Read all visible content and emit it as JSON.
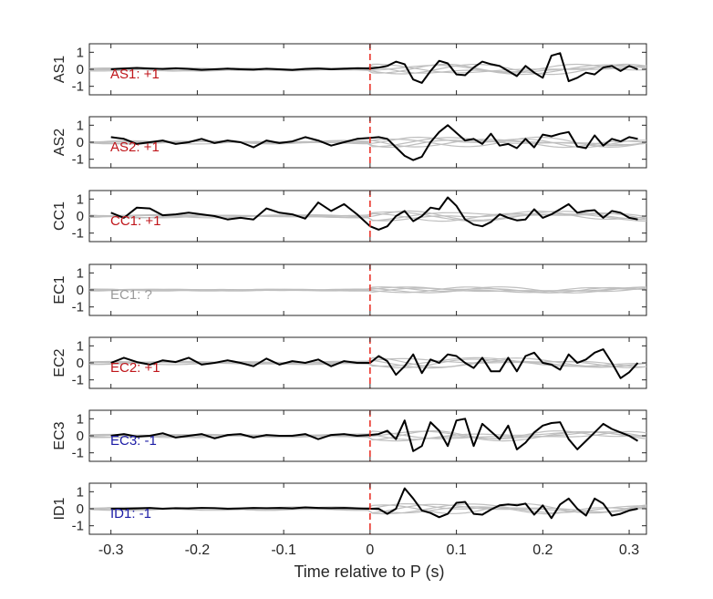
{
  "chart_data": {
    "type": "line",
    "layout": "stacked-panels",
    "xlabel": "Time relative to P (s)",
    "xlim": [
      -0.325,
      0.32
    ],
    "x_ticks": [
      "-0.3",
      "-0.2",
      "-0.1",
      "0",
      "0.1",
      "0.2",
      "0.3"
    ],
    "x_tick_values": [
      -0.3,
      -0.2,
      -0.1,
      0,
      0.1,
      0.2,
      0.3
    ],
    "ylim": [
      -1.5,
      1.5
    ],
    "y_ticks": [
      "1",
      "0",
      "-1"
    ],
    "y_tick_values": [
      1,
      0,
      -1
    ],
    "marker_line_x": 0,
    "colors": {
      "axis": "#262626",
      "trace": "#000000",
      "background_traces": "#bfbfbf",
      "marker_line": "#e8271d",
      "positive_label": "#c0161b",
      "negative_label": "#1d1da6",
      "unknown_label": "#9a9a9a"
    },
    "panels": [
      {
        "ylabel": "AS1",
        "label": "AS1: +1",
        "polarity": "positive",
        "x": [
          -0.3,
          -0.285,
          -0.27,
          -0.255,
          -0.24,
          -0.225,
          -0.21,
          -0.195,
          -0.18,
          -0.165,
          -0.15,
          -0.135,
          -0.12,
          -0.105,
          -0.09,
          -0.075,
          -0.06,
          -0.045,
          -0.03,
          -0.015,
          0,
          0.01,
          0.02,
          0.03,
          0.04,
          0.05,
          0.06,
          0.07,
          0.08,
          0.09,
          0.1,
          0.11,
          0.12,
          0.13,
          0.14,
          0.15,
          0.16,
          0.17,
          0.18,
          0.19,
          0.2,
          0.21,
          0.22,
          0.23,
          0.24,
          0.25,
          0.26,
          0.27,
          0.28,
          0.29,
          0.3,
          0.31
        ],
        "y": [
          0.0,
          0.05,
          0.08,
          0.05,
          0.02,
          0.06,
          0.02,
          -0.03,
          0.0,
          0.04,
          0.0,
          -0.02,
          0.03,
          0.0,
          -0.04,
          0.02,
          0.05,
          0.0,
          0.03,
          0.06,
          0.05,
          0.1,
          0.2,
          0.45,
          0.3,
          -0.6,
          -0.8,
          -0.1,
          0.5,
          0.35,
          -0.3,
          -0.35,
          0.1,
          0.45,
          0.3,
          0.2,
          -0.1,
          -0.4,
          0.2,
          -0.2,
          -0.5,
          0.8,
          0.95,
          -0.7,
          -0.5,
          -0.2,
          -0.3,
          0.1,
          0.2,
          -0.1,
          0.2,
          0.0
        ]
      },
      {
        "ylabel": "AS2",
        "label": "AS2: +1",
        "polarity": "positive",
        "x": [
          -0.3,
          -0.285,
          -0.27,
          -0.255,
          -0.24,
          -0.225,
          -0.21,
          -0.195,
          -0.18,
          -0.165,
          -0.15,
          -0.135,
          -0.12,
          -0.105,
          -0.09,
          -0.075,
          -0.06,
          -0.045,
          -0.03,
          -0.015,
          0,
          0.01,
          0.02,
          0.03,
          0.04,
          0.05,
          0.06,
          0.07,
          0.08,
          0.09,
          0.1,
          0.11,
          0.12,
          0.13,
          0.14,
          0.15,
          0.16,
          0.17,
          0.18,
          0.19,
          0.2,
          0.21,
          0.22,
          0.23,
          0.24,
          0.25,
          0.26,
          0.27,
          0.28,
          0.29,
          0.3,
          0.31
        ],
        "y": [
          0.3,
          0.2,
          -0.1,
          0.0,
          0.1,
          -0.1,
          0.0,
          0.2,
          -0.05,
          0.1,
          0.0,
          -0.3,
          0.1,
          -0.05,
          0.05,
          0.3,
          0.1,
          -0.2,
          0.0,
          0.2,
          0.25,
          0.3,
          0.2,
          -0.3,
          -0.8,
          -1.05,
          -0.85,
          0.0,
          0.6,
          1.0,
          0.55,
          0.1,
          0.2,
          -0.1,
          0.5,
          -0.2,
          -0.1,
          -0.35,
          0.2,
          -0.3,
          0.45,
          0.35,
          0.5,
          0.6,
          -0.25,
          -0.35,
          0.4,
          -0.2,
          0.2,
          0.05,
          0.3,
          0.2
        ]
      },
      {
        "ylabel": "CC1",
        "label": "CC1: +1",
        "polarity": "positive",
        "x": [
          -0.3,
          -0.285,
          -0.27,
          -0.255,
          -0.24,
          -0.225,
          -0.21,
          -0.195,
          -0.18,
          -0.165,
          -0.15,
          -0.135,
          -0.12,
          -0.105,
          -0.09,
          -0.075,
          -0.06,
          -0.045,
          -0.03,
          -0.015,
          0,
          0.01,
          0.02,
          0.03,
          0.04,
          0.05,
          0.06,
          0.07,
          0.08,
          0.09,
          0.1,
          0.11,
          0.12,
          0.13,
          0.14,
          0.15,
          0.16,
          0.17,
          0.18,
          0.19,
          0.2,
          0.21,
          0.22,
          0.23,
          0.24,
          0.25,
          0.26,
          0.27,
          0.28,
          0.29,
          0.3,
          0.31
        ],
        "y": [
          0.2,
          -0.1,
          0.5,
          0.45,
          0.05,
          0.1,
          0.2,
          0.1,
          0.0,
          -0.2,
          -0.1,
          -0.2,
          0.45,
          0.2,
          0.1,
          -0.15,
          0.8,
          0.3,
          0.7,
          0.1,
          -0.6,
          -0.8,
          -0.6,
          0.0,
          0.3,
          -0.3,
          0.0,
          0.5,
          0.4,
          1.1,
          0.6,
          -0.2,
          -0.5,
          -0.6,
          -0.35,
          0.1,
          -0.1,
          -0.25,
          -0.2,
          0.4,
          -0.1,
          0.1,
          0.4,
          0.7,
          0.2,
          0.3,
          0.35,
          -0.1,
          0.3,
          0.2,
          -0.1,
          -0.2
        ]
      },
      {
        "ylabel": "EC1",
        "label": "EC1: ?",
        "polarity": "unknown",
        "x": [],
        "y": []
      },
      {
        "ylabel": "EC2",
        "label": "EC2: +1",
        "polarity": "positive",
        "x": [
          -0.3,
          -0.285,
          -0.27,
          -0.255,
          -0.24,
          -0.225,
          -0.21,
          -0.195,
          -0.18,
          -0.165,
          -0.15,
          -0.135,
          -0.12,
          -0.105,
          -0.09,
          -0.075,
          -0.06,
          -0.045,
          -0.03,
          -0.015,
          0,
          0.01,
          0.02,
          0.03,
          0.04,
          0.05,
          0.06,
          0.07,
          0.08,
          0.09,
          0.1,
          0.11,
          0.12,
          0.13,
          0.14,
          0.15,
          0.16,
          0.17,
          0.18,
          0.19,
          0.2,
          0.21,
          0.22,
          0.23,
          0.24,
          0.25,
          0.26,
          0.27,
          0.28,
          0.29,
          0.3,
          0.31
        ],
        "y": [
          0.0,
          0.3,
          0.05,
          -0.1,
          0.15,
          0.05,
          0.3,
          -0.1,
          0.0,
          0.15,
          0.0,
          -0.2,
          0.25,
          -0.1,
          0.1,
          0.0,
          0.2,
          -0.2,
          0.1,
          0.0,
          0.0,
          0.4,
          0.1,
          -0.7,
          -0.2,
          0.5,
          -0.6,
          0.2,
          0.0,
          0.5,
          0.4,
          0.0,
          -0.3,
          0.3,
          -0.5,
          -0.5,
          0.3,
          -0.5,
          0.4,
          0.6,
          0.0,
          -0.1,
          -0.4,
          0.5,
          0.0,
          0.2,
          0.6,
          0.8,
          0.0,
          -0.9,
          -0.55,
          0.0
        ]
      },
      {
        "ylabel": "EC3",
        "label": "EC3: -1",
        "polarity": "negative",
        "x": [
          -0.3,
          -0.285,
          -0.27,
          -0.255,
          -0.24,
          -0.225,
          -0.21,
          -0.195,
          -0.18,
          -0.165,
          -0.15,
          -0.135,
          -0.12,
          -0.105,
          -0.09,
          -0.075,
          -0.06,
          -0.045,
          -0.03,
          -0.015,
          0,
          0.01,
          0.02,
          0.03,
          0.04,
          0.05,
          0.06,
          0.07,
          0.08,
          0.09,
          0.1,
          0.11,
          0.12,
          0.13,
          0.14,
          0.15,
          0.16,
          0.17,
          0.18,
          0.19,
          0.2,
          0.21,
          0.22,
          0.23,
          0.24,
          0.25,
          0.26,
          0.27,
          0.28,
          0.29,
          0.3,
          0.31
        ],
        "y": [
          0.0,
          0.1,
          -0.05,
          0.0,
          0.15,
          -0.1,
          0.0,
          0.1,
          -0.15,
          0.05,
          0.1,
          -0.1,
          0.05,
          0.0,
          0.0,
          0.1,
          -0.2,
          0.05,
          0.1,
          0.0,
          0.05,
          0.1,
          0.3,
          -0.2,
          0.9,
          -0.9,
          -0.6,
          0.8,
          0.3,
          -0.6,
          0.9,
          1.0,
          -0.6,
          0.7,
          0.25,
          -0.2,
          0.6,
          -0.8,
          -0.4,
          0.2,
          0.6,
          0.75,
          0.8,
          -0.2,
          -0.8,
          -0.3,
          0.2,
          0.7,
          0.4,
          0.2,
          0.0,
          -0.3
        ]
      },
      {
        "ylabel": "ID1",
        "label": "ID1: -1",
        "polarity": "negative",
        "x": [
          -0.3,
          -0.285,
          -0.27,
          -0.255,
          -0.24,
          -0.225,
          -0.21,
          -0.195,
          -0.18,
          -0.165,
          -0.15,
          -0.135,
          -0.12,
          -0.105,
          -0.09,
          -0.075,
          -0.06,
          -0.045,
          -0.03,
          -0.015,
          0,
          0.01,
          0.02,
          0.03,
          0.04,
          0.05,
          0.06,
          0.07,
          0.08,
          0.09,
          0.1,
          0.11,
          0.12,
          0.13,
          0.14,
          0.15,
          0.16,
          0.17,
          0.18,
          0.19,
          0.2,
          0.21,
          0.22,
          0.23,
          0.24,
          0.25,
          0.26,
          0.27,
          0.28,
          0.29,
          0.3,
          0.31
        ],
        "y": [
          0.0,
          0.0,
          0.02,
          0.05,
          0.0,
          0.03,
          0.02,
          0.05,
          0.03,
          0.0,
          0.02,
          0.05,
          0.03,
          0.05,
          0.02,
          0.08,
          0.05,
          0.03,
          0.05,
          0.02,
          0.0,
          0.0,
          -0.3,
          0.0,
          1.2,
          0.6,
          -0.1,
          -0.25,
          -0.5,
          -0.3,
          0.35,
          0.4,
          -0.3,
          -0.35,
          -0.05,
          0.2,
          0.25,
          0.2,
          0.3,
          -0.35,
          0.2,
          -0.55,
          0.25,
          0.6,
          0.0,
          -0.4,
          0.6,
          0.3,
          -0.4,
          -0.3,
          -0.1,
          0.0
        ]
      }
    ]
  }
}
